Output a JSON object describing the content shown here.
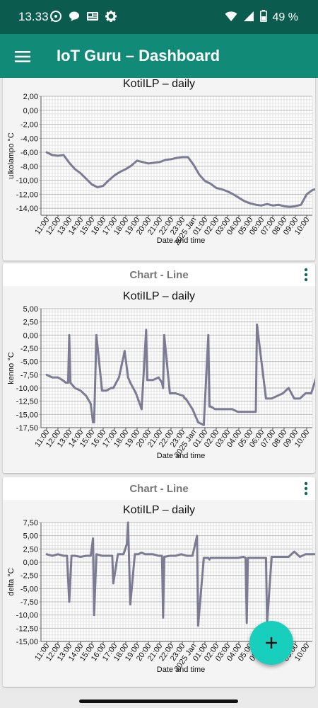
{
  "status_bar": {
    "time": "13.33",
    "battery_percent": "49 %",
    "left_icons": [
      "whatsapp-icon",
      "chat-bubble-icon",
      "news-icon",
      "gear-icon"
    ],
    "right_icons": [
      "wifi-icon",
      "cell-signal-icon",
      "battery-icon"
    ]
  },
  "app_bar": {
    "title": "IoT Guru – Dashboard",
    "menu_icon": "hamburger-menu-icon"
  },
  "fab": {
    "icon": "plus-icon"
  },
  "colors": {
    "status_bar": "#0b5c4f",
    "app_bar": "#128a78",
    "fab": "#18cfbd",
    "line": "#7c7b94"
  },
  "cards": [
    {
      "header": "",
      "menu_icon": "more-vert-icon"
    },
    {
      "header": "Chart - Line",
      "menu_icon": "more-vert-icon"
    },
    {
      "header": "Chart - Line",
      "menu_icon": "more-vert-icon"
    }
  ],
  "chart_data": [
    {
      "type": "line",
      "title": "KotiILP – daily",
      "xlabel": "Date and time",
      "ylabel": "ulkolampo °C",
      "grid": true,
      "ylim": [
        -15,
        2
      ],
      "yticks": [
        "2,00",
        "0,00",
        "-2,00",
        "-4,00",
        "-6,00",
        "-8,00",
        "-10,00",
        "-12,00",
        "-14,00"
      ],
      "xticks": [
        "11:00",
        "12:00",
        "13:00",
        "14:00",
        "15:00",
        "16:00",
        "17:00",
        "18:00",
        "19:00",
        "20:00",
        "21:00",
        "22:00",
        "23:00",
        "2025 Jan",
        "01:00",
        "02:00",
        "03:00",
        "04:00",
        "05:00",
        "06:00",
        "07:00",
        "08:00",
        "09:00",
        "10:00"
      ],
      "x": [
        0,
        0.5,
        1,
        1.5,
        2,
        2.5,
        3,
        3.5,
        4,
        4.5,
        5,
        5.5,
        6,
        6.5,
        7,
        7.5,
        8,
        8.5,
        9,
        9.5,
        10,
        10.5,
        11,
        11.5,
        12,
        12.5,
        13,
        13.5,
        14,
        14.5,
        15,
        15.5,
        16,
        16.5,
        17,
        17.5,
        18,
        18.5,
        19,
        19.5,
        20,
        20.5,
        21,
        21.5,
        22,
        22.5,
        23,
        23.5,
        24
      ],
      "series": [
        {
          "values": [
            -6,
            -6.4,
            -6.5,
            -6.4,
            -7.5,
            -8.4,
            -9,
            -9.8,
            -10.6,
            -11,
            -10.8,
            -10,
            -9.3,
            -8.8,
            -8.4,
            -7.9,
            -7.2,
            -7.4,
            -7.6,
            -7.5,
            -7.4,
            -7.1,
            -7,
            -6.8,
            -6.7,
            -6.7,
            -7.8,
            -9.2,
            -10.1,
            -10.5,
            -11.1,
            -11.3,
            -11.6,
            -12,
            -12.5,
            -13,
            -13.3,
            -13.5,
            -13.6,
            -13.4,
            -13.6,
            -13.5,
            -13.7,
            -13.8,
            -13.7,
            -13.5,
            -12,
            -11.4,
            -11.2
          ]
        }
      ]
    },
    {
      "type": "line",
      "title": "KotiILP – daily",
      "xlabel": "Date and time",
      "ylabel": "kenno °C",
      "grid": true,
      "ylim": [
        -17.5,
        5
      ],
      "yticks": [
        "5,00",
        "2,50",
        "0,00",
        "-2,50",
        "-5,00",
        "-7,50",
        "-10,00",
        "-12,50",
        "-15,00",
        "-17,50"
      ],
      "xticks": [
        "11:00",
        "12:00",
        "13:00",
        "14:00",
        "15:00",
        "16:00",
        "17:00",
        "18:00",
        "19:00",
        "20:00",
        "21:00",
        "22:00",
        "23:00",
        "2025 Jan",
        "01:00",
        "02:00",
        "03:00",
        "04:00",
        "05:00",
        "06:00",
        "07:00",
        "08:00",
        "09:00",
        "10:00"
      ],
      "x": [
        0,
        0.5,
        1,
        1.4,
        1.7,
        1.9,
        2,
        2.1,
        2.5,
        3,
        3.5,
        3.9,
        4.1,
        4.2,
        4.4,
        4.9,
        5.3,
        5.7,
        5.8,
        5.9,
        6.4,
        6.9,
        7.2,
        7.4,
        7.9,
        8.4,
        8.8,
        8.9,
        9.4,
        9.9,
        10.2,
        10.3,
        10.4,
        10.9,
        11.4,
        12.1,
        12.2,
        12.3,
        12.9,
        13.4,
        13.9,
        14.3,
        14.4,
        14.5,
        14.9,
        15.4,
        15.9,
        16.4,
        16.9,
        17.4,
        17.9,
        18.4,
        18.5,
        18.6,
        19.4,
        19.9,
        20.4,
        20.9,
        21.4,
        21.9,
        22.4,
        22.9,
        23.4,
        24
      ],
      "series": [
        {
          "values": [
            -7.5,
            -8,
            -8,
            -8.5,
            -9,
            -9,
            0,
            -9,
            -10,
            -10.5,
            -11.5,
            -13,
            -16.5,
            -16.5,
            0,
            -10.5,
            -10.5,
            -10,
            -10,
            -10,
            -8,
            -3,
            -8,
            -9,
            -11,
            -14,
            1,
            -8.5,
            -8.5,
            -8,
            -9,
            -10,
            0,
            -11,
            -11,
            -11.5,
            -12,
            -12,
            -14,
            -16.5,
            -17,
            0,
            -13.5,
            -13.5,
            -14,
            -14,
            -14,
            -14,
            -14.5,
            -14.5,
            -14.5,
            -14.5,
            -14.5,
            2,
            -12,
            -12,
            -11.5,
            -11,
            -10,
            -12,
            -12,
            -11,
            -11,
            -7
          ]
        }
      ]
    },
    {
      "type": "line",
      "title": "KotiILP – daily",
      "xlabel": "Date and time",
      "ylabel": "delta °C",
      "grid": true,
      "ylim": [
        -15,
        7.5
      ],
      "yticks": [
        "7,50",
        "5,00",
        "2,50",
        "0,00",
        "-2,50",
        "-5,00",
        "-7,50",
        "-10,00",
        "-12,50",
        "-15,00"
      ],
      "xticks": [
        "11:00",
        "12:00",
        "13:00",
        "14:00",
        "15:00",
        "16:00",
        "17:00",
        "18:00",
        "19:00",
        "20:00",
        "21:00",
        "22:00",
        "23:00",
        "2025 Jan",
        "01:00",
        "02:00",
        "03:00",
        "04:00",
        "05:00",
        "06:00",
        "07:00",
        "08:00",
        "09:00",
        "10:00"
      ],
      "x": [
        0,
        0.5,
        1,
        1.5,
        1.8,
        2,
        2.2,
        2.5,
        3,
        3.5,
        3.9,
        4.1,
        4.2,
        4.4,
        4.9,
        5.3,
        5.7,
        5.8,
        5.9,
        6.3,
        6.8,
        7.1,
        7.2,
        7.4,
        7.8,
        8.1,
        8.4,
        8.7,
        8.8,
        8.9,
        9.4,
        9.9,
        10.2,
        10.3,
        10.4,
        10.9,
        11.4,
        11.9,
        12.4,
        12.9,
        13.2,
        13.3,
        13.4,
        13.9,
        14.3,
        14.4,
        14.5,
        14.9,
        15.4,
        15.9,
        16.4,
        16.9,
        17.4,
        17.6,
        17.7,
        17.8,
        18.4,
        18.9,
        19.3,
        19.4,
        19.5,
        19.9,
        20.4,
        20.9,
        21.4,
        21.9,
        22.4,
        22.9,
        23.4,
        24
      ],
      "series": [
        {
          "values": [
            1.5,
            1.2,
            1.5,
            1.2,
            1.2,
            -7.5,
            1.2,
            1.2,
            1,
            1.2,
            1.2,
            4.5,
            -10,
            1.5,
            1.2,
            1.2,
            1.2,
            1.2,
            -4,
            1.5,
            1.5,
            3.5,
            7.5,
            -8,
            1.5,
            1.5,
            1.8,
            1.5,
            1.5,
            1.5,
            1.5,
            1.2,
            1.2,
            -10.5,
            1,
            1.2,
            1.2,
            1.5,
            1.2,
            1.2,
            4,
            5,
            -12,
            0.8,
            0.8,
            0.5,
            0.8,
            0.8,
            0.8,
            0.8,
            0.8,
            0.8,
            1,
            0.8,
            -11.5,
            0.8,
            0.8,
            0.8,
            0.8,
            0.8,
            -11.5,
            1,
            1,
            1,
            1,
            2,
            1,
            1.5,
            1.5,
            1.5
          ]
        }
      ]
    }
  ]
}
